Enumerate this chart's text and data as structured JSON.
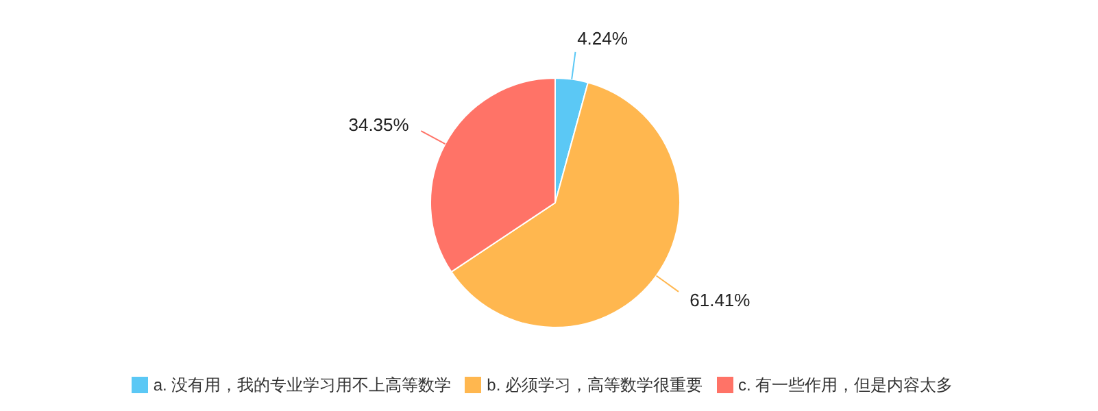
{
  "chart_data": {
    "type": "pie",
    "categories": [
      "a. 没有用，我的专业学习用不上高等数学",
      "b. 必须学习，高等数学很重要",
      "c. 有一些作用，但是内容太多"
    ],
    "values": [
      4.24,
      61.41,
      34.35
    ],
    "colors": [
      "#5bc8f5",
      "#ffb74f",
      "#ff7367"
    ],
    "value_labels": [
      "4.24%",
      "61.41%",
      "34.35%"
    ],
    "legend": "bottom"
  }
}
